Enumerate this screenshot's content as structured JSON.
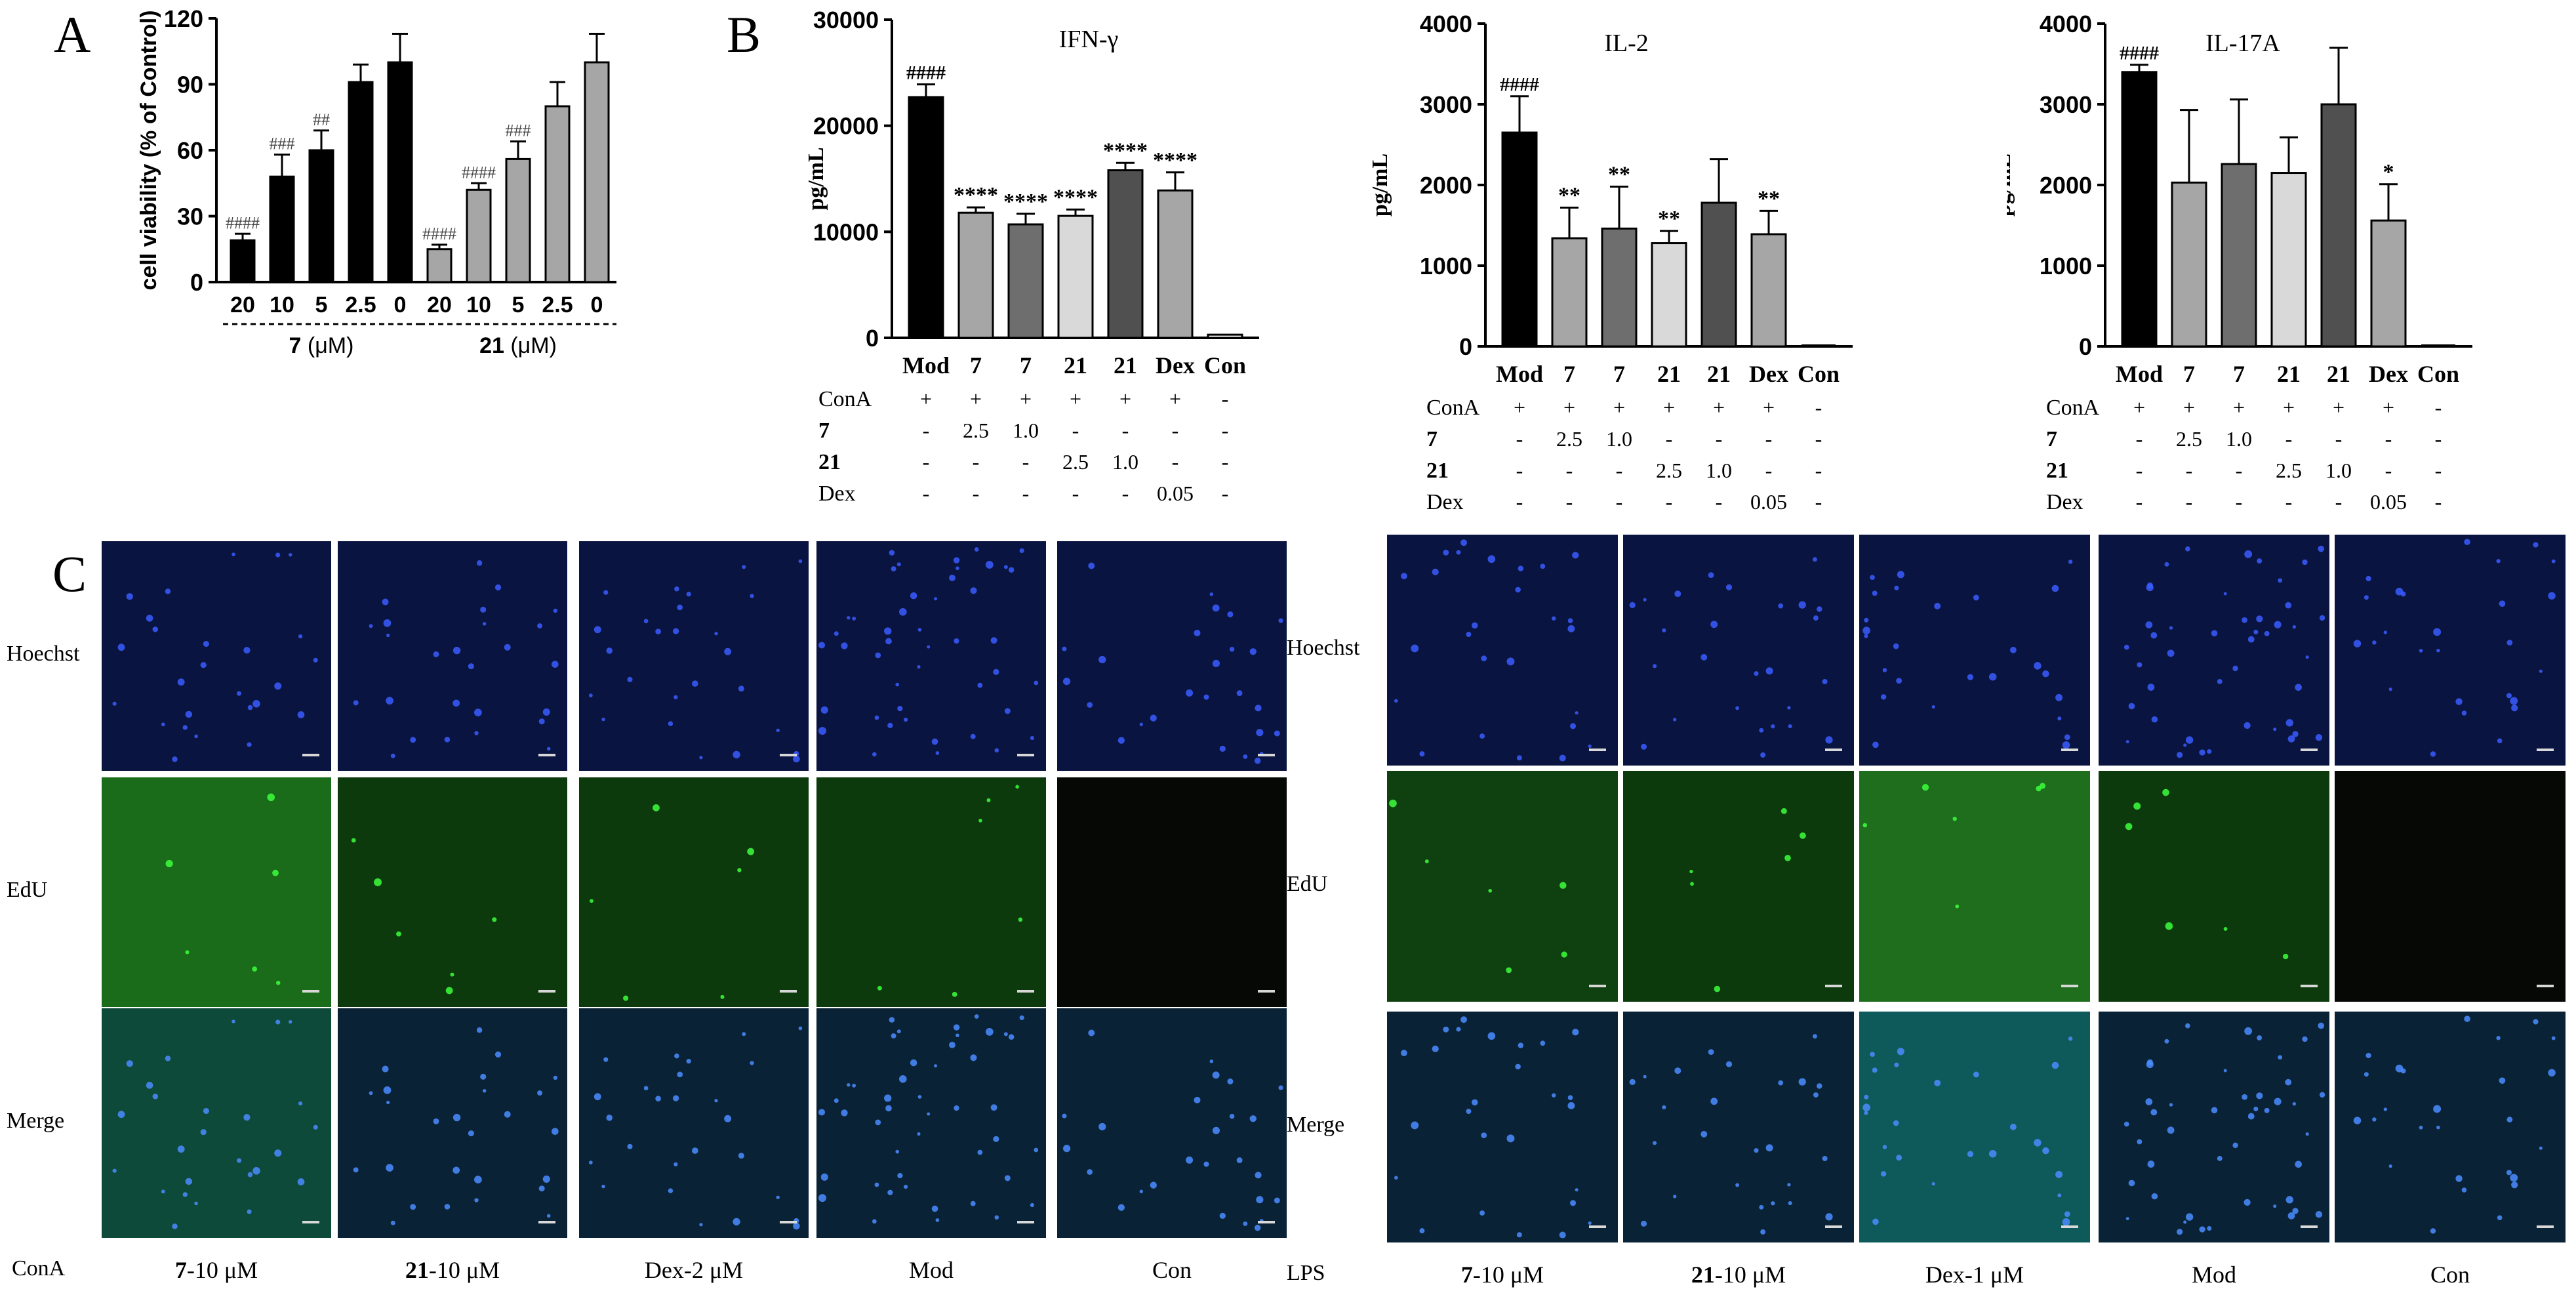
{
  "figure": {
    "panel_letters": [
      "A",
      "B",
      "C"
    ],
    "panel_c": {
      "left": {
        "stimulus": "ConA",
        "row_labels": [
          "Hoechst",
          "EdU",
          "Merge"
        ],
        "column_labels": [
          {
            "bold": "7",
            "rest": "-10 μM"
          },
          {
            "bold": "21",
            "rest": "-10 μM"
          },
          {
            "bold": "",
            "rest": "Dex-2 μM"
          },
          {
            "bold": "",
            "rest": "Mod"
          },
          {
            "bold": "",
            "rest": "Con"
          }
        ]
      },
      "right": {
        "stimulus": "LPS",
        "row_labels": [
          "Hoechst",
          "EdU",
          "Merge"
        ],
        "column_labels": [
          {
            "bold": "7",
            "rest": "-10 μM"
          },
          {
            "bold": "21",
            "rest": "-10 μM"
          },
          {
            "bold": "",
            "rest": "Dex-1 μM"
          },
          {
            "bold": "",
            "rest": "Mod"
          },
          {
            "bold": "",
            "rest": "Con"
          }
        ]
      },
      "colors": {
        "hoechst": "#0a1440",
        "edu": "#0c3a0c",
        "merge": "#0a2236",
        "edu_bright": "#1a7a1a"
      }
    }
  },
  "chart_data": [
    {
      "id": "A",
      "type": "bar",
      "ylabel": "cell viability (% of Control)",
      "ylim": [
        0,
        120
      ],
      "yticks": [
        0,
        30,
        60,
        90,
        120
      ],
      "groups": [
        {
          "name_bold": "7",
          "name_rest": " (μM)",
          "categories": [
            "20",
            "10",
            "5",
            "2.5",
            "0"
          ],
          "values": [
            19,
            48,
            60,
            91,
            100
          ],
          "errors": [
            3,
            10,
            9,
            8,
            13
          ],
          "annotations": [
            "####",
            "###",
            "##",
            "",
            ""
          ],
          "color": "#000000"
        },
        {
          "name_bold": "21",
          "name_rest": " (μM)",
          "categories": [
            "20",
            "10",
            "5",
            "2.5",
            "0"
          ],
          "values": [
            15,
            42,
            56,
            80,
            100
          ],
          "errors": [
            2,
            3,
            8,
            11,
            13
          ],
          "annotations": [
            "####",
            "####",
            "###",
            "",
            ""
          ],
          "color": "#a6a6a6"
        }
      ]
    },
    {
      "id": "B1",
      "type": "bar",
      "title": "IFN-γ",
      "ylabel": "pg/mL",
      "ylim": [
        0,
        30000
      ],
      "yticks": [
        0,
        10000,
        20000,
        30000
      ],
      "categories": [
        "Mod",
        "7",
        "7",
        "21",
        "21",
        "Dex",
        "Con"
      ],
      "values": [
        22700,
        11800,
        10700,
        11500,
        15800,
        13900,
        300
      ],
      "errors": [
        1200,
        500,
        1000,
        600,
        700,
        1700,
        0
      ],
      "annotations": [
        "####",
        "****",
        "****",
        "****",
        "****",
        "****",
        ""
      ],
      "colors": [
        "#000000",
        "#a6a6a6",
        "#6e6e6e",
        "#d9d9d9",
        "#505050",
        "#a6a6a6",
        "#ffffff"
      ]
    },
    {
      "id": "B2",
      "type": "bar",
      "title": "IL-2",
      "ylabel": "pg/mL",
      "ylim": [
        0,
        4000
      ],
      "yticks": [
        0,
        1000,
        2000,
        3000,
        4000
      ],
      "categories": [
        "Mod",
        "7",
        "7",
        "21",
        "21",
        "Dex",
        "Con"
      ],
      "values": [
        2650,
        1340,
        1460,
        1280,
        1780,
        1390,
        0
      ],
      "errors": [
        450,
        380,
        520,
        150,
        540,
        290,
        0
      ],
      "annotations": [
        "####",
        "**",
        "**",
        "**",
        "",
        "**",
        ""
      ],
      "colors": [
        "#000000",
        "#a6a6a6",
        "#6e6e6e",
        "#d9d9d9",
        "#505050",
        "#a6a6a6",
        "#ffffff"
      ]
    },
    {
      "id": "B3",
      "type": "bar",
      "title": "IL-17A",
      "ylabel": "pg/mL",
      "ylim": [
        0,
        4000
      ],
      "yticks": [
        0,
        1000,
        2000,
        3000,
        4000
      ],
      "categories": [
        "Mod",
        "7",
        "7",
        "21",
        "21",
        "Dex",
        "Con"
      ],
      "values": [
        3400,
        2030,
        2260,
        2150,
        3000,
        1560,
        0
      ],
      "errors": [
        90,
        900,
        800,
        440,
        700,
        450,
        0
      ],
      "annotations": [
        "####",
        "",
        "",
        "",
        "",
        "*",
        ""
      ],
      "colors": [
        "#000000",
        "#a6a6a6",
        "#6e6e6e",
        "#d9d9d9",
        "#505050",
        "#a6a6a6",
        "#ffffff"
      ]
    }
  ],
  "treatment_table": {
    "rows": [
      {
        "label": "ConA",
        "bold": false,
        "cells": [
          "+",
          "+",
          "+",
          "+",
          "+",
          "+",
          "-"
        ]
      },
      {
        "label": "7",
        "bold": true,
        "cells": [
          "-",
          "2.5",
          "1.0",
          "-",
          "-",
          "-",
          "-"
        ]
      },
      {
        "label": "21",
        "bold": true,
        "cells": [
          "-",
          "-",
          "-",
          "2.5",
          "1.0",
          "-",
          "-"
        ]
      },
      {
        "label": "Dex",
        "bold": false,
        "cells": [
          "-",
          "-",
          "-",
          "-",
          "-",
          "0.05",
          "-"
        ]
      }
    ]
  }
}
